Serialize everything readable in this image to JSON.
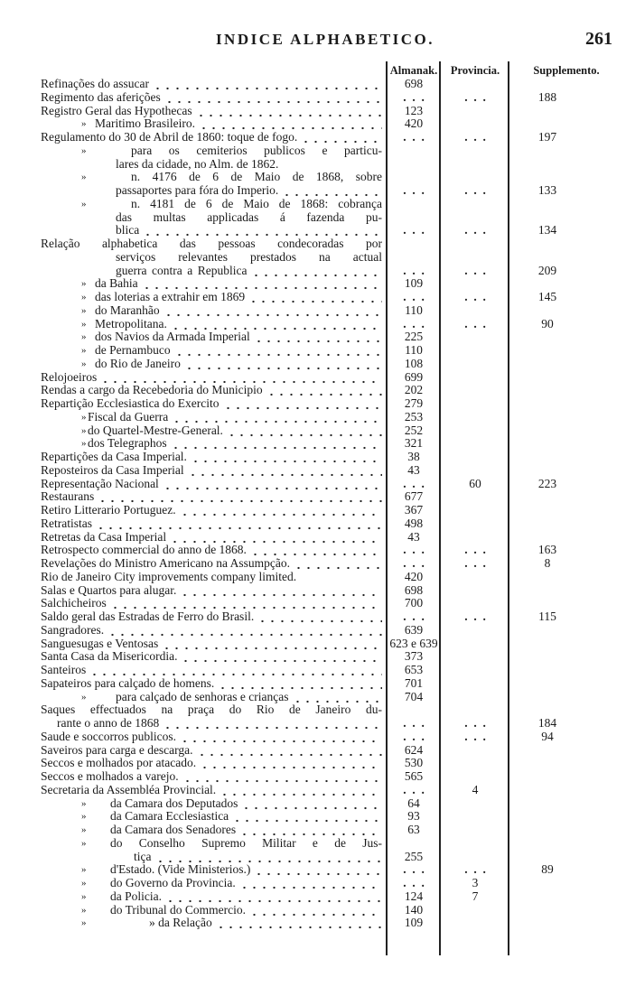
{
  "header": {
    "title": "INDICE ALPHABETICO.",
    "page_number": "261"
  },
  "columns": {
    "almanak": "Almanak.",
    "provincia": "Provincia.",
    "supplemento": "Supplemento."
  },
  "ditto_mark": "»",
  "rows": [
    {
      "t": "Refinações do assucar",
      "a": "698"
    },
    {
      "t": "Regimento das aferições",
      "s": "188",
      "dots": "ap"
    },
    {
      "t": "Registro Geral das Hypothecas",
      "a": "123"
    },
    {
      "t": "Maritimo Brasileiro.",
      "d": true,
      "a": "420"
    },
    {
      "t": "Regulamento do 30 de Abril de 1860: toque de fogo.",
      "s": "197",
      "dots": "ap"
    },
    {
      "t": "para os cemiterios publicos e particu-",
      "d": true,
      "j": true
    },
    {
      "t": "lares da cidade, no Alm. de 1862.",
      "nl": true
    },
    {
      "t": "n. 4176 de 6 de Maio de 1868, sobre",
      "d": true,
      "j": true
    },
    {
      "t": "passaportes para fóra do Imperio.",
      "s": "133",
      "dots": "ap"
    },
    {
      "t": "n. 4181 de 6 de Maio de 1868: cobrança",
      "d": true,
      "j": true
    },
    {
      "t": "das multas applicadas á fazenda pu-",
      "j": true
    },
    {
      "t": "blica",
      "s": "134",
      "dots": "ap"
    },
    {
      "t": "Relação alphabetica das pessoas condecoradas por",
      "j": true
    },
    {
      "t": "serviços relevantes prestados na actual",
      "j": true
    },
    {
      "t": "guerra contra a Republica do Paraguay.",
      "j": true,
      "s": "209",
      "dots": "ap"
    },
    {
      "t": "da Bahia",
      "d": true,
      "a": "109"
    },
    {
      "t": "das loterias a extrahir em 1869",
      "d": true,
      "s": "145",
      "dots": "ap"
    },
    {
      "t": "do Maranhão",
      "d": true,
      "a": "110"
    },
    {
      "t": "Metropolitana.",
      "d": true,
      "s": "90",
      "dots": "ap"
    },
    {
      "t": "dos Navios da Armada Imperial",
      "d": true,
      "a": "225"
    },
    {
      "t": "de Pernambuco",
      "d": true,
      "a": "110"
    },
    {
      "t": "do Rio de Janeiro",
      "d": true,
      "a": "108"
    },
    {
      "t": "Relojoeiros",
      "a": "699"
    },
    {
      "t": "Rendas a cargo da Recebedoria do Municipio",
      "a": "202"
    },
    {
      "t": "Repartição Ecclesiastica do Exercito",
      "a": "279"
    },
    {
      "t": "Fiscal da Guerra",
      "d": true,
      "a": "253"
    },
    {
      "t": "do Quartel-Mestre-General.",
      "d": true,
      "a": "252"
    },
    {
      "t": "dos Telegraphos",
      "d": true,
      "a": "321"
    },
    {
      "t": "Repartições da Casa Imperial.",
      "a": "38"
    },
    {
      "t": "Reposteiros da Casa Imperial",
      "a": "43"
    },
    {
      "t": "Representação Nacional",
      "p": "60",
      "s": "223",
      "dots": "a"
    },
    {
      "t": "Restaurans",
      "a": "677"
    },
    {
      "t": "Retiro Litterario Portuguez.",
      "a": "367"
    },
    {
      "t": "Retratistas",
      "a": "498"
    },
    {
      "t": "Retretas da Casa Imperial",
      "a": "43"
    },
    {
      "t": "Retrospecto commercial do anno de 1868.",
      "s": "163",
      "dots": "ap"
    },
    {
      "t": "Revelações do Ministro Americano na Assumpção.",
      "s": "8",
      "dots": "ap"
    },
    {
      "t": "Rio de Janeiro City improvements company limited.",
      "a": "420",
      "nl": true
    },
    {
      "t": "Salas e Quartos para alugar.",
      "a": "698"
    },
    {
      "t": "Salchicheiros",
      "a": "700"
    },
    {
      "t": "Saldo geral das Estradas de Ferro do Brasil.",
      "s": "115",
      "dots": "ap"
    },
    {
      "t": "Sangradores.",
      "a": "639"
    },
    {
      "t": "Sanguesugas e Ventosas",
      "a": "623 e 639"
    },
    {
      "t": "Santa Casa da Misericordia.",
      "a": "373"
    },
    {
      "t": "Santeiros",
      "a": "653"
    },
    {
      "t": "Sapateiros para calçado de homens.",
      "a": "701"
    },
    {
      "t": "para calçado de senhoras e crianças",
      "d": true,
      "a": "704"
    },
    {
      "t": "Saques effectuados na praça do Rio de Janeiro du-",
      "j": true
    },
    {
      "t": "rante o anno de 1868",
      "s": "184",
      "dots": "ap"
    },
    {
      "t": "Saude e soccorros publicos.",
      "s": "94",
      "dots": "ap"
    },
    {
      "t": "Saveiros para carga e descarga.",
      "a": "624"
    },
    {
      "t": "Seccos e molhados por atacado.",
      "a": "530"
    },
    {
      "t": "Seccos e molhados a varejo.",
      "a": "565"
    },
    {
      "t": "Secretaria da Assembléa Provincial.",
      "p": "4",
      "dots": "a"
    },
    {
      "t": "da Camara dos Deputados",
      "d": true,
      "a": "64"
    },
    {
      "t": "da Camara Ecclesiastica",
      "d": true,
      "a": "93"
    },
    {
      "t": "da Camara dos Senadores",
      "d": true,
      "a": "63"
    },
    {
      "t": "do Conselho Supremo Militar e de Jus-",
      "d": true,
      "j": true
    },
    {
      "t": "tiça",
      "a": "255"
    },
    {
      "t": "d'Estado. (Vide Ministerios.)",
      "d": true,
      "s": "89",
      "dots": "ap"
    },
    {
      "t": "do Governo da Provincia.",
      "d": true,
      "p": "3",
      "dots": "a"
    },
    {
      "t": "da Policia.",
      "d": true,
      "a": "124",
      "p": "7"
    },
    {
      "t": "do Tribunal do Commercio.",
      "d": true,
      "a": "140"
    },
    {
      "t": "» da Relação",
      "d": true,
      "a": "109"
    }
  ]
}
